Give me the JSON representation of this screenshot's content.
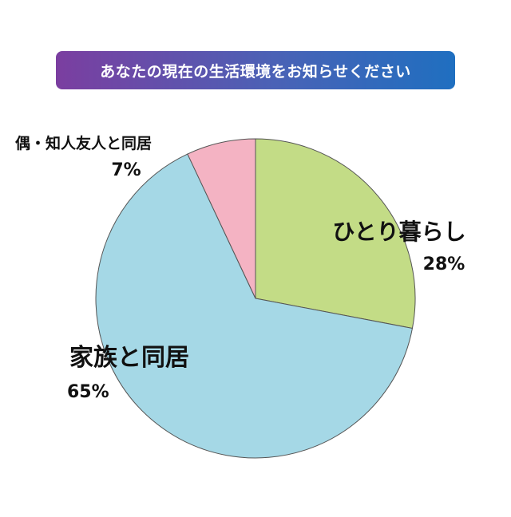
{
  "chart_data": {
    "type": "pie",
    "title": "あなたの現在の生活環境をお知らせください",
    "slices": [
      {
        "label": "ひとり暮らし",
        "value": 28,
        "value_label": "28%",
        "color": "#c3dc86"
      },
      {
        "label": "家族と同居",
        "value": 65,
        "value_label": "65%",
        "color": "#a5d8e6"
      },
      {
        "label": "恋人・配偶・知人友人と同居",
        "visible_label": "偶・知人友人と同居",
        "value": 7,
        "value_label": "7%",
        "color": "#f4b3c3"
      }
    ]
  }
}
